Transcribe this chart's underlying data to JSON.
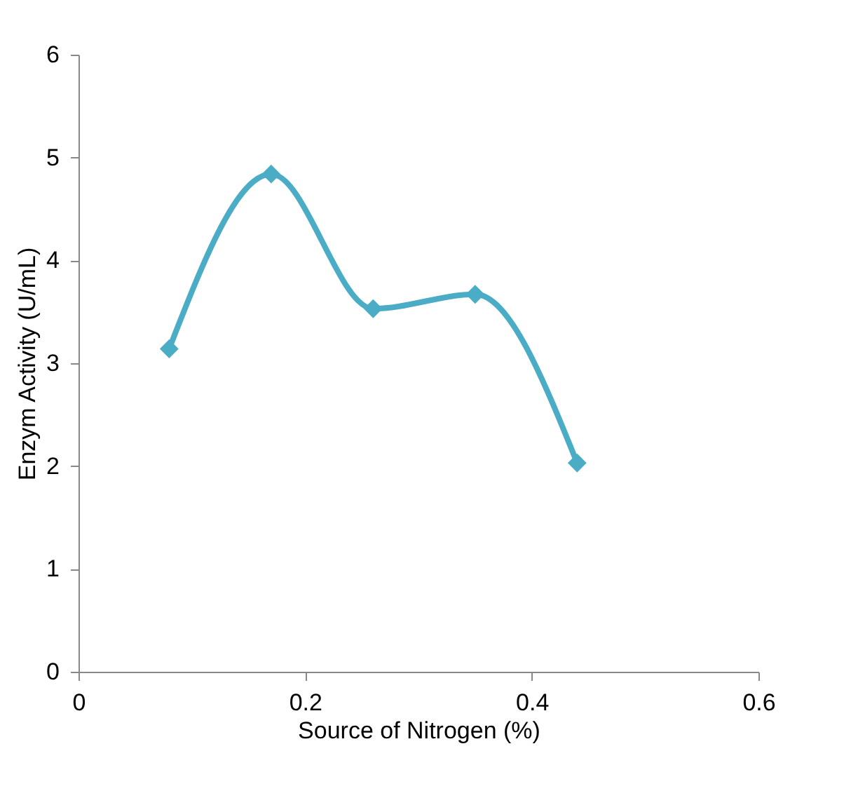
{
  "chart_data": {
    "type": "line",
    "xlabel": "Source of Nitrogen (%)",
    "ylabel": "Enzym Activity (U/mL)",
    "x": [
      0.08,
      0.17,
      0.26,
      0.35,
      0.44
    ],
    "series": [
      {
        "color": "#4bacc6",
        "values": [
          3.14,
          4.84,
          3.53,
          3.67,
          2.03
        ]
      }
    ],
    "xlim": [
      0,
      0.6
    ],
    "xticks": [
      0,
      0.2,
      0.4,
      0.6
    ],
    "ylim": [
      0,
      6
    ],
    "yticks": [
      0,
      1,
      2,
      3,
      4,
      5,
      6
    ],
    "grid": false,
    "legend": false,
    "marker": "diamond",
    "line_style": "solid"
  }
}
